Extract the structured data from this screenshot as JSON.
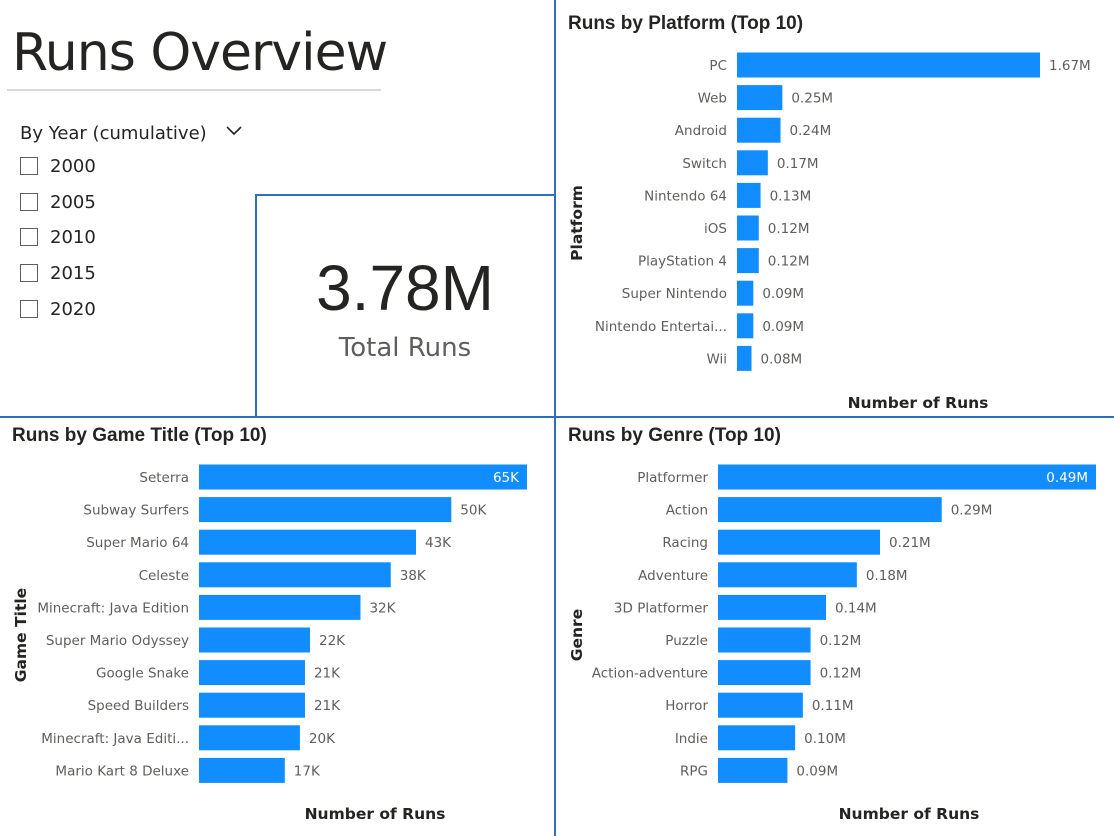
{
  "page": {
    "title": "Runs Overview"
  },
  "slicer": {
    "header": "By Year (cumulative)",
    "items": [
      "2000",
      "2005",
      "2010",
      "2015",
      "2020"
    ],
    "icon": "chevron-down-icon"
  },
  "card": {
    "value": "3.78M",
    "label": "Total Runs"
  },
  "colors": {
    "bar": "#118dff",
    "divider": "#2f6fb7",
    "text": "#252423",
    "label": "#605e5c"
  },
  "chart_data": [
    {
      "id": "platform",
      "type": "bar",
      "orientation": "horizontal",
      "title": "Runs by Platform (Top 10)",
      "xlabel": "Number of Runs",
      "ylabel": "Platform",
      "categories": [
        "PC",
        "Web",
        "Android",
        "Switch",
        "Nintendo 64",
        "iOS",
        "PlayStation 4",
        "Super Nintendo",
        "Nintendo Entertai...",
        "Wii"
      ],
      "values": [
        1.67,
        0.25,
        0.24,
        0.17,
        0.13,
        0.12,
        0.12,
        0.09,
        0.09,
        0.08
      ],
      "value_labels": [
        "1.67M",
        "0.25M",
        "0.24M",
        "0.17M",
        "0.13M",
        "0.12M",
        "0.12M",
        "0.09M",
        "0.09M",
        "0.08M"
      ],
      "xlim": [
        0,
        1.67
      ],
      "grid": false
    },
    {
      "id": "game",
      "type": "bar",
      "orientation": "horizontal",
      "title": "Runs by Game Title (Top 10)",
      "xlabel": "Number of Runs",
      "ylabel": "Game Title",
      "categories": [
        "Seterra",
        "Subway Surfers",
        "Super Mario 64",
        "Celeste",
        "Minecraft: Java Edition",
        "Super Mario Odyssey",
        "Google Snake",
        "Speed Builders",
        "Minecraft: Java Editi...",
        "Mario Kart 8 Deluxe"
      ],
      "values": [
        65,
        50,
        43,
        38,
        32,
        22,
        21,
        21,
        20,
        17
      ],
      "value_labels": [
        "65K",
        "50K",
        "43K",
        "38K",
        "32K",
        "22K",
        "21K",
        "21K",
        "20K",
        "17K"
      ],
      "xlim": [
        0,
        65
      ],
      "grid": false
    },
    {
      "id": "genre",
      "type": "bar",
      "orientation": "horizontal",
      "title": "Runs by Genre (Top 10)",
      "xlabel": "Number of Runs",
      "ylabel": "Genre",
      "categories": [
        "Platformer",
        "Action",
        "Racing",
        "Adventure",
        "3D Platformer",
        "Puzzle",
        "Action-adventure",
        "Horror",
        "Indie",
        "RPG"
      ],
      "values": [
        0.49,
        0.29,
        0.21,
        0.18,
        0.14,
        0.12,
        0.12,
        0.11,
        0.1,
        0.09
      ],
      "value_labels": [
        "0.49M",
        "0.29M",
        "0.21M",
        "0.18M",
        "0.14M",
        "0.12M",
        "0.12M",
        "0.11M",
        "0.10M",
        "0.09M"
      ],
      "xlim": [
        0,
        0.49
      ],
      "grid": false
    }
  ]
}
